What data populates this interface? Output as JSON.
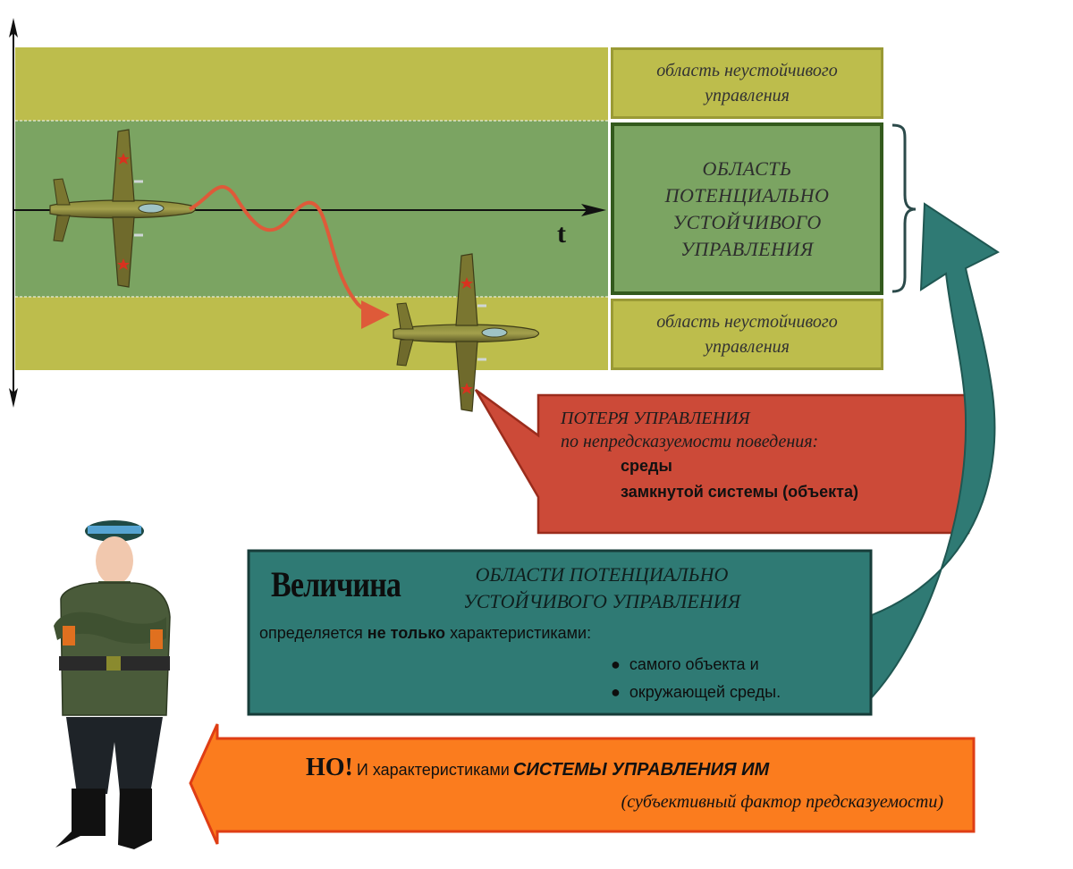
{
  "axis": {
    "t_label": "t"
  },
  "zones": {
    "top_label": "область неустойчивого управления",
    "center_label": "ОБЛАСТЬ ПОТЕНЦИАЛЬНО УСТОЙЧИВОГО УПРАВЛЕНИЯ",
    "bottom_label": "область неустойчивого управления"
  },
  "loss_callout": {
    "title": "ПОТЕРЯ УПРАВЛЕНИЯ",
    "subtitle": "по непредсказуемости поведения:",
    "items": [
      "среды",
      "замкнутой системы (объекта)"
    ]
  },
  "value_box": {
    "lead": "Величина",
    "heading_line1": "ОБЛАСТИ ПОТЕНЦИАЛЬНО",
    "heading_line2": "УСТОЙЧИВОГО УПРАВЛЕНИЯ",
    "text_prefix": "определяется",
    "text_bold": "не только",
    "text_suffix": "характеристиками:",
    "bullets": [
      "самого объекта и",
      "окружающей среды."
    ]
  },
  "but_banner": {
    "lead": "НО!",
    "text": "И характеристиками",
    "emphasis": "СИСТЕМЫ УПРАВЛЕНИЯ ИМ",
    "note": "(субъективный фактор предсказуемости)"
  },
  "colors": {
    "unstable_zone": "#bdbd4c",
    "stable_zone": "#7ba462",
    "loss_callout": "#cc4a38",
    "value_box": "#2f7a74",
    "but_banner": "#fb7c1e"
  }
}
